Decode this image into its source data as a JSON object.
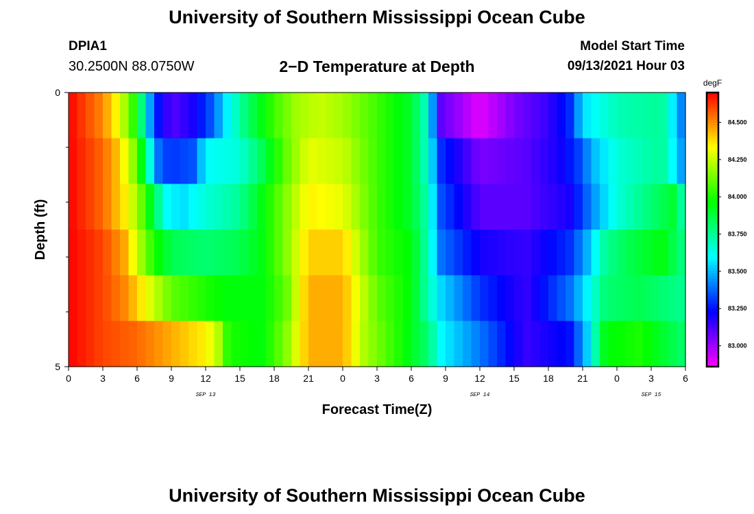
{
  "header": {
    "title": "University of Southern Mississippi Ocean Cube",
    "station_id": "DPIA1",
    "coords": "30.2500N  88.0750W",
    "subtitle": "2−D Temperature at Depth",
    "start_label": "Model Start Time",
    "start_value": "09/13/2021 Hour 03"
  },
  "footer": {
    "title": "University of Southern Mississippi Ocean Cube"
  },
  "chart_data": {
    "type": "heatmap",
    "xlabel": "Forecast Time(Z)",
    "ylabel": "Depth (ft)",
    "x_hours": [
      0,
      3,
      6,
      9,
      12,
      15,
      18,
      21,
      24,
      27,
      30,
      33,
      36,
      39,
      42,
      45,
      48,
      51,
      54
    ],
    "x_tick_labels": [
      "0",
      "3",
      "6",
      "9",
      "12",
      "15",
      "18",
      "21",
      "0",
      "3",
      "6",
      "9",
      "12",
      "15",
      "18",
      "21",
      "0",
      "3",
      "6"
    ],
    "date_labels": [
      {
        "label": "SEP 13",
        "hour": 12
      },
      {
        "label": "SEP 14",
        "hour": 36
      },
      {
        "label": "SEP 15",
        "hour": 51
      }
    ],
    "y_range": [
      0,
      5
    ],
    "y_tick_labels": [
      {
        "value": 0,
        "label": "0"
      },
      {
        "value": 5,
        "label": "5"
      }
    ],
    "y_minor_ticks": [
      1,
      2,
      3,
      4
    ],
    "depth_levels": [
      0,
      1,
      2,
      3,
      4,
      5
    ],
    "colorbar": {
      "unit": "degF",
      "range": [
        82.86,
        84.7
      ],
      "tick_values": [
        83.0,
        83.25,
        83.5,
        83.75,
        84.0,
        84.25,
        84.5
      ],
      "tick_labels": [
        "83.000",
        "83.250",
        "83.500",
        "83.750",
        "84.000",
        "84.250",
        "84.500"
      ]
    },
    "temperature_rows": [
      {
        "depth": 0,
        "points": [
          [
            0,
            84.7
          ],
          [
            3,
            84.5
          ],
          [
            4.5,
            84.3
          ],
          [
            6,
            83.95
          ],
          [
            7.5,
            83.3
          ],
          [
            9,
            83.1
          ],
          [
            11,
            83.2
          ],
          [
            12.5,
            83.35
          ],
          [
            14,
            83.6
          ],
          [
            16,
            83.85
          ],
          [
            18,
            84.05
          ],
          [
            20,
            84.2
          ],
          [
            22,
            84.25
          ],
          [
            24,
            84.2
          ],
          [
            27,
            84.05
          ],
          [
            30,
            83.9
          ],
          [
            31.5,
            83.65
          ],
          [
            32.5,
            83.1
          ],
          [
            36,
            82.9
          ],
          [
            39,
            83.05
          ],
          [
            42,
            83.15
          ],
          [
            44,
            83.3
          ],
          [
            45,
            83.55
          ],
          [
            48,
            83.7
          ],
          [
            52,
            83.75
          ],
          [
            54,
            83.35
          ]
        ]
      },
      {
        "depth": 1,
        "points": [
          [
            0,
            84.7
          ],
          [
            3,
            84.55
          ],
          [
            4.5,
            84.4
          ],
          [
            6,
            84.1
          ],
          [
            7.5,
            83.5
          ],
          [
            8,
            83.35
          ],
          [
            9,
            83.3
          ],
          [
            11,
            83.35
          ],
          [
            12,
            83.6
          ],
          [
            15,
            83.65
          ],
          [
            17,
            83.85
          ],
          [
            19,
            84.1
          ],
          [
            21,
            84.3
          ],
          [
            24,
            84.25
          ],
          [
            27,
            84.05
          ],
          [
            30,
            83.9
          ],
          [
            31.5,
            83.65
          ],
          [
            32.5,
            83.3
          ],
          [
            36,
            83.05
          ],
          [
            40,
            83.1
          ],
          [
            43,
            83.2
          ],
          [
            44.5,
            83.3
          ],
          [
            46,
            83.5
          ],
          [
            48,
            83.65
          ],
          [
            52,
            83.75
          ],
          [
            54,
            83.4
          ]
        ]
      },
      {
        "depth": 2,
        "points": [
          [
            0,
            84.7
          ],
          [
            3,
            84.55
          ],
          [
            5,
            84.35
          ],
          [
            6,
            84.2
          ],
          [
            7.5,
            83.85
          ],
          [
            8.5,
            83.6
          ],
          [
            10,
            83.55
          ],
          [
            12,
            83.65
          ],
          [
            15,
            83.75
          ],
          [
            17,
            83.95
          ],
          [
            19,
            84.15
          ],
          [
            21,
            84.35
          ],
          [
            24,
            84.3
          ],
          [
            27,
            84.05
          ],
          [
            30,
            83.9
          ],
          [
            31.5,
            83.7
          ],
          [
            32.5,
            83.35
          ],
          [
            36,
            83.1
          ],
          [
            40,
            83.1
          ],
          [
            44,
            83.2
          ],
          [
            46,
            83.45
          ],
          [
            48,
            83.65
          ],
          [
            51,
            83.8
          ],
          [
            53,
            83.9
          ],
          [
            54,
            83.65
          ]
        ]
      },
      {
        "depth": 3,
        "points": [
          [
            0,
            84.7
          ],
          [
            3,
            84.6
          ],
          [
            5,
            84.45
          ],
          [
            6,
            84.25
          ],
          [
            7.5,
            84.0
          ],
          [
            9,
            83.85
          ],
          [
            12,
            83.8
          ],
          [
            15,
            83.85
          ],
          [
            17,
            83.95
          ],
          [
            19,
            84.15
          ],
          [
            21,
            84.4
          ],
          [
            24,
            84.4
          ],
          [
            27,
            84.05
          ],
          [
            30,
            83.95
          ],
          [
            31.5,
            83.7
          ],
          [
            32.5,
            83.4
          ],
          [
            36,
            83.2
          ],
          [
            40,
            83.15
          ],
          [
            44,
            83.3
          ],
          [
            45.5,
            83.5
          ],
          [
            47,
            83.75
          ],
          [
            49,
            83.85
          ],
          [
            52,
            83.95
          ],
          [
            54,
            83.75
          ]
        ]
      },
      {
        "depth": 4,
        "points": [
          [
            0,
            84.7
          ],
          [
            3,
            84.6
          ],
          [
            5,
            84.5
          ],
          [
            7,
            84.3
          ],
          [
            9,
            84.1
          ],
          [
            12,
            84.0
          ],
          [
            14,
            83.95
          ],
          [
            17,
            83.95
          ],
          [
            19,
            84.1
          ],
          [
            21,
            84.45
          ],
          [
            24,
            84.45
          ],
          [
            27,
            84.1
          ],
          [
            30,
            83.95
          ],
          [
            31.5,
            83.7
          ],
          [
            32.5,
            83.55
          ],
          [
            36,
            83.3
          ],
          [
            40,
            83.15
          ],
          [
            44,
            83.4
          ],
          [
            45.5,
            83.6
          ],
          [
            47,
            83.8
          ],
          [
            50,
            83.85
          ],
          [
            54,
            83.75
          ]
        ]
      },
      {
        "depth": 5,
        "points": [
          [
            0,
            84.7
          ],
          [
            3,
            84.6
          ],
          [
            6,
            84.55
          ],
          [
            9,
            84.45
          ],
          [
            12,
            84.35
          ],
          [
            13,
            84.25
          ],
          [
            14,
            84.0
          ],
          [
            17,
            83.95
          ],
          [
            19,
            84.15
          ],
          [
            21,
            84.45
          ],
          [
            24,
            84.45
          ],
          [
            26,
            84.2
          ],
          [
            29,
            84.0
          ],
          [
            31.5,
            83.8
          ],
          [
            32.5,
            83.6
          ],
          [
            36,
            83.4
          ],
          [
            40,
            83.15
          ],
          [
            44,
            83.25
          ],
          [
            45.5,
            83.55
          ],
          [
            47,
            83.95
          ],
          [
            50,
            84.0
          ],
          [
            54,
            83.8
          ]
        ]
      }
    ]
  }
}
